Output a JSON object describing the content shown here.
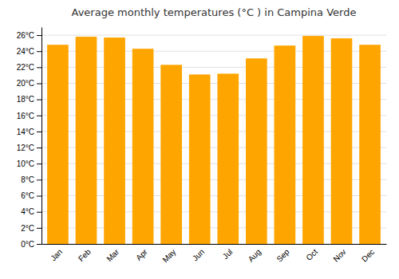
{
  "chart_data": {
    "type": "bar",
    "title": "Average monthly temperatures (°C ) in Campina Verde",
    "categories": [
      "Jan",
      "Feb",
      "Mar",
      "Apr",
      "May",
      "Jun",
      "Jul",
      "Aug",
      "Sep",
      "Oct",
      "Nov",
      "Dec"
    ],
    "values": [
      24.8,
      25.8,
      25.7,
      24.3,
      22.3,
      21.1,
      21.2,
      23.1,
      24.7,
      25.9,
      25.6,
      24.8
    ],
    "color": "#FFA500",
    "ylim": [
      0,
      27
    ],
    "yticks": [
      {
        "value": 0,
        "label": "0°C"
      },
      {
        "value": 2,
        "label": "2°C"
      },
      {
        "value": 4,
        "label": "4°C"
      },
      {
        "value": 6,
        "label": "6°C"
      },
      {
        "value": 8,
        "label": "8°C"
      },
      {
        "value": 10,
        "label": "10°C"
      },
      {
        "value": 12,
        "label": "12°C"
      },
      {
        "value": 14,
        "label": "14°C"
      },
      {
        "value": 16,
        "label": "16°C"
      },
      {
        "value": 18,
        "label": "18°C"
      },
      {
        "value": 20,
        "label": "20°C"
      },
      {
        "value": 22,
        "label": "22°C"
      },
      {
        "value": 24,
        "label": "24°C"
      },
      {
        "value": 26,
        "label": "26°C"
      }
    ],
    "grid": true
  }
}
